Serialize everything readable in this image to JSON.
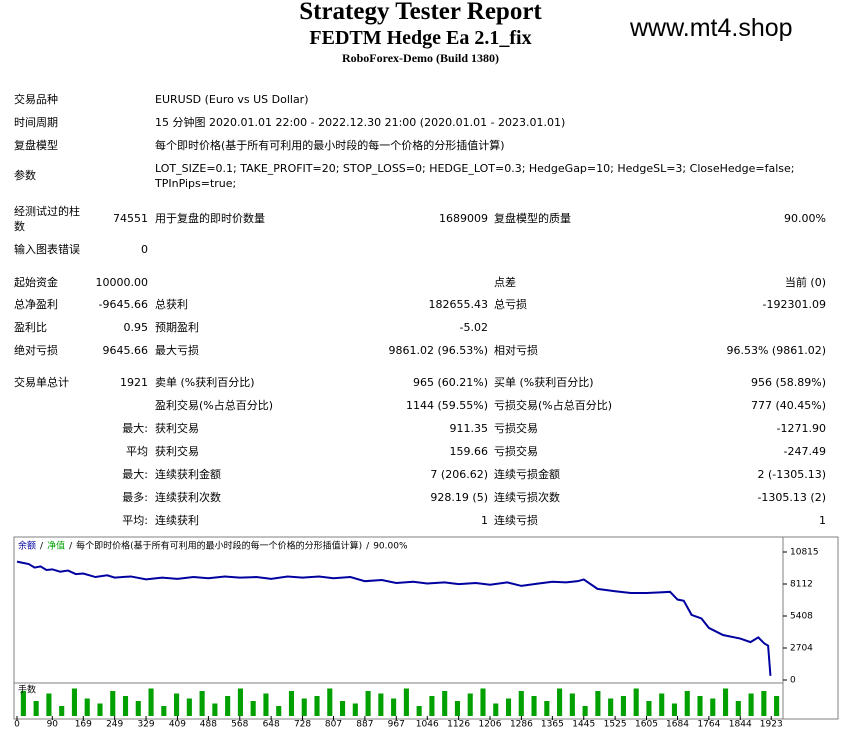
{
  "header": {
    "title": "Strategy Tester Report",
    "subtitle": "FEDTM Hedge Ea 2.1_fix",
    "server": "RoboForex-Demo (Build 1380)",
    "watermark": "www.mt4.shop"
  },
  "info": [
    {
      "label": "交易品种",
      "value": [
        "EURUSD (Euro vs US Dollar)"
      ]
    },
    {
      "label": "时间周期",
      "value": [
        "15 分钟图 2020.01.01 22:00 - 2022.12.30 21:00 (2020.01.01 - 2023.01.01)"
      ]
    },
    {
      "label": "复盘模型",
      "value": [
        "每个即时价格(基于所有可利用的最小时段的每一个价格的分形插值计算)"
      ]
    },
    {
      "label": "参数",
      "value": [
        "LOT_SIZE=0.1; TAKE_PROFIT=20; STOP_LOSS=0; HEDGE_LOT=0.3; HedgeGap=10; HedgeSL=3; CloseHedge=false;",
        "TPInPips=true;"
      ]
    }
  ],
  "stats": [
    [
      "经测试过的柱数",
      "74551",
      "用于复盘的即时价数量",
      "1689009",
      "复盘模型的质量",
      "90.00%"
    ],
    [
      "输入图表错误",
      "0",
      null,
      null,
      null,
      null
    ],
    [
      "起始资金",
      "10000.00",
      null,
      null,
      "点差",
      "当前 (0)"
    ],
    [
      "总净盈利",
      "-9645.66",
      "总获利",
      "182655.43",
      "总亏损",
      "-192301.09"
    ],
    [
      "盈利比",
      "0.95",
      "预期盈利",
      "-5.02",
      null,
      null
    ],
    [
      "绝对亏损",
      "9645.66",
      "最大亏损",
      "9861.02 (96.53%)",
      "相对亏损",
      "96.53% (9861.02)"
    ],
    [
      "交易单总计",
      "1921",
      "卖单 (%获利百分比)",
      "965 (60.21%)",
      "买单 (%获利百分比)",
      "956 (58.89%)"
    ],
    [
      null,
      null,
      "盈利交易(%占总百分比)",
      "1144 (59.55%)",
      "亏损交易(%占总百分比)",
      "777 (40.45%)"
    ],
    [
      null,
      "最大:",
      "获利交易",
      "911.35",
      "亏损交易",
      "-1271.90"
    ],
    [
      null,
      "平均",
      "获利交易",
      "159.66",
      "亏损交易",
      "-247.49"
    ],
    [
      null,
      "最大:",
      "连续获利金额",
      "7 (206.62)",
      "连续亏损金额",
      "2 (-1305.13)"
    ],
    [
      null,
      "最多:",
      "连续获利次数",
      "928.19 (5)",
      "连续亏损次数",
      "-1305.13 (2)"
    ],
    [
      null,
      "平均:",
      "连续获利",
      "1",
      "连续亏损",
      "1"
    ]
  ],
  "chart_data": {
    "type": "line",
    "legend": [
      {
        "name": "余额",
        "color": "#0000a0"
      },
      {
        "name": "净值",
        "color": "#00a000"
      }
    ],
    "separator": "/",
    "model_text": "每个即时价格(基于所有可利用的最小时段的每一个价格的分形插值计算)",
    "quality": "90.00%",
    "series": [
      {
        "name": "余额",
        "color": "#0000a0",
        "x": [
          0,
          15,
          30,
          45,
          60,
          75,
          90,
          110,
          130,
          150,
          169,
          200,
          230,
          249,
          290,
          329,
          370,
          409,
          450,
          488,
          530,
          568,
          610,
          648,
          690,
          728,
          770,
          807,
          850,
          887,
          930,
          967,
          1010,
          1046,
          1090,
          1126,
          1170,
          1206,
          1250,
          1286,
          1330,
          1365,
          1400,
          1430,
          1445,
          1480,
          1525,
          1565,
          1605,
          1640,
          1665,
          1684,
          1700,
          1720,
          1745,
          1764,
          1800,
          1844,
          1870,
          1890,
          1905,
          1915,
          1921
        ],
        "values": [
          10000,
          9900,
          9800,
          9500,
          9600,
          9300,
          9350,
          9150,
          9250,
          8950,
          9000,
          8700,
          8850,
          8650,
          8750,
          8500,
          8650,
          8550,
          8700,
          8600,
          8750,
          8650,
          8700,
          8550,
          8750,
          8650,
          8750,
          8600,
          8700,
          8350,
          8450,
          8200,
          8300,
          8150,
          8250,
          8100,
          8200,
          8050,
          8250,
          7950,
          8150,
          8300,
          8250,
          8350,
          8500,
          7700,
          7500,
          7350,
          7350,
          7400,
          7450,
          6800,
          6700,
          5500,
          5200,
          4400,
          3800,
          3500,
          3200,
          3600,
          3100,
          2900,
          354.34
        ]
      }
    ],
    "xlim": [
      0,
      1953
    ],
    "xticks": [
      0,
      90,
      169,
      249,
      329,
      409,
      488,
      568,
      648,
      728,
      807,
      887,
      967,
      1046,
      1126,
      1206,
      1286,
      1365,
      1445,
      1525,
      1605,
      1684,
      1764,
      1844,
      1923
    ],
    "ylim": [
      0,
      11830
    ],
    "yticks": [
      10815,
      8112,
      5408,
      2704,
      0
    ],
    "volume": {
      "label": "手数",
      "color": "#00a000",
      "ylim": [
        0,
        0.6
      ],
      "values": [
        0.5,
        0.3,
        0.45,
        0.2,
        0.55,
        0.35,
        0.25,
        0.5,
        0.4,
        0.3,
        0.55,
        0.2,
        0.45,
        0.35,
        0.5,
        0.25,
        0.4,
        0.55,
        0.3,
        0.45,
        0.2,
        0.5,
        0.35,
        0.4,
        0.55,
        0.3,
        0.25,
        0.5,
        0.45,
        0.35,
        0.55,
        0.2,
        0.4,
        0.5,
        0.3,
        0.45,
        0.55,
        0.25,
        0.35,
        0.5,
        0.4,
        0.3,
        0.55,
        0.45,
        0.2,
        0.5,
        0.35,
        0.4,
        0.55,
        0.3,
        0.45,
        0.25,
        0.5,
        0.4,
        0.35,
        0.55,
        0.3,
        0.45,
        0.5,
        0.4
      ]
    }
  }
}
